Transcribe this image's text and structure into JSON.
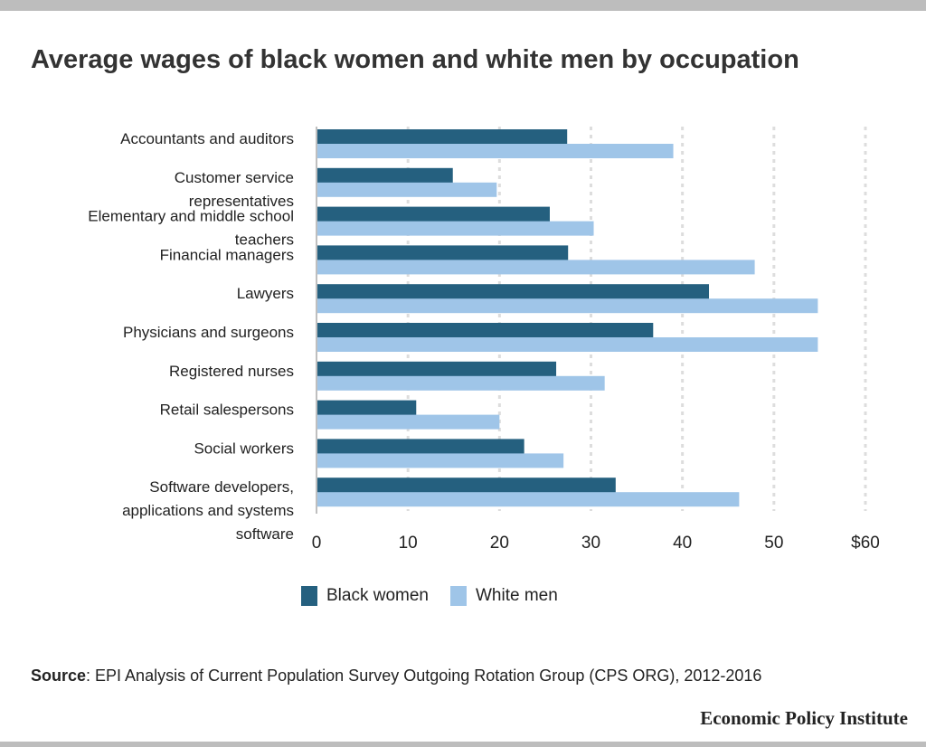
{
  "chart_data": {
    "type": "bar",
    "orientation": "horizontal",
    "title": "Average wages of black women and white men by occupation",
    "categories": [
      [
        "Accountants and auditors"
      ],
      [
        "Customer service",
        "representatives"
      ],
      [
        "Elementary and middle school",
        "teachers"
      ],
      [
        "Financial managers"
      ],
      [
        "Lawyers"
      ],
      [
        "Physicians and surgeons"
      ],
      [
        "Registered nurses"
      ],
      [
        "Retail salespersons"
      ],
      [
        "Social workers"
      ],
      [
        "Software developers,",
        "applications and systems",
        "software"
      ]
    ],
    "series": [
      {
        "name": "Black women",
        "color": "#25607f",
        "values": [
          27.4,
          14.9,
          25.5,
          27.5,
          42.9,
          36.8,
          26.2,
          10.9,
          22.7,
          32.7
        ]
      },
      {
        "name": "White men",
        "color": "#9fc5e8",
        "values": [
          39.0,
          19.7,
          30.3,
          47.9,
          54.8,
          54.8,
          31.5,
          20.0,
          27.0,
          46.2
        ]
      }
    ],
    "xlim": [
      0,
      60
    ],
    "xticks": [
      0,
      10,
      20,
      30,
      40,
      50,
      60
    ],
    "xtick_labels": [
      "0",
      "10",
      "20",
      "30",
      "40",
      "50",
      "$60"
    ],
    "grid": "vertical dotted",
    "legend_placement": "bottom"
  },
  "source": {
    "label": "Source",
    "text": ": EPI Analysis of Current Population Survey Outgoing Rotation Group (CPS ORG), 2012-2016"
  },
  "logo": "Economic Policy Institute"
}
